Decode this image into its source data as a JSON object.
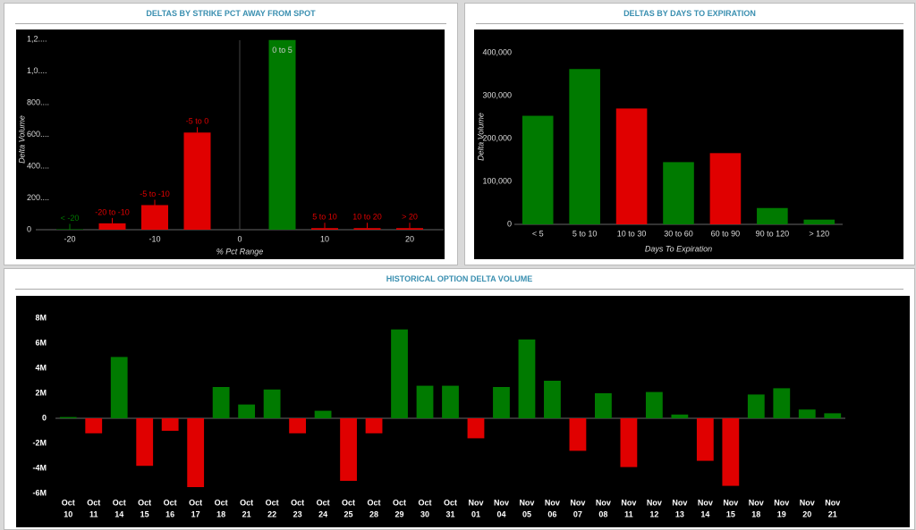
{
  "chart_data": [
    {
      "type": "bar",
      "title": "DELTAS BY STRIKE PCT AWAY FROM SPOT",
      "x_label": "% Pct Range",
      "y_label": "Delta Volume",
      "categories": [
        "< -20",
        "-20 to -10",
        "-5 to -10",
        "-5 to 0",
        "0 to 5",
        "5 to 10",
        "10 to 20",
        "> 20"
      ],
      "x": [
        -20,
        -15,
        -10,
        -5,
        5,
        10,
        15,
        20
      ],
      "values": [
        3,
        40,
        155,
        612,
        1195,
        10,
        10,
        10
      ],
      "colors": [
        "#007a00",
        "#e00000",
        "#e00000",
        "#e00000",
        "#007a00",
        "#e00000",
        "#e00000",
        "#e00000"
      ],
      "xlim": [
        -24,
        24
      ],
      "xticks": [
        -20,
        -10,
        0,
        10,
        20
      ],
      "ylim": [
        0,
        1250
      ],
      "yticks": [
        0,
        {
          "value": 200,
          "label": "200...."
        },
        {
          "value": 400,
          "label": "400...."
        },
        {
          "value": 600,
          "label": "600...."
        },
        {
          "value": 800,
          "label": "800...."
        },
        {
          "value": 1000,
          "label": "1,0...."
        },
        {
          "value": 1200,
          "label": "1,2...."
        }
      ]
    },
    {
      "type": "bar",
      "title": "DELTAS BY DAYS TO EXPIRATION",
      "x_label": "Days To Expiration",
      "y_label": "Delta Volume",
      "categories": [
        "< 5",
        "5 to 10",
        "10 to 30",
        "30 to 60",
        "60 to 90",
        "90 to 120",
        "> 120"
      ],
      "values": [
        253000,
        362000,
        270000,
        145000,
        166000,
        38000,
        11000
      ],
      "colors": [
        "#007a00",
        "#007a00",
        "#e00000",
        "#007a00",
        "#e00000",
        "#007a00",
        "#007a00"
      ],
      "ylim": [
        0,
        450000
      ],
      "yticks": [
        0,
        {
          "value": 100000,
          "label": "100,000"
        },
        {
          "value": 200000,
          "label": "200,000"
        },
        {
          "value": 300000,
          "label": "300,000"
        },
        {
          "value": 400000,
          "label": "400,000"
        }
      ]
    },
    {
      "type": "bar",
      "title": "HISTORICAL OPTION DELTA VOLUME",
      "categories": [
        [
          "Oct",
          "10"
        ],
        [
          "Oct",
          "11"
        ],
        [
          "Oct",
          "14"
        ],
        [
          "Oct",
          "15"
        ],
        [
          "Oct",
          "16"
        ],
        [
          "Oct",
          "17"
        ],
        [
          "Oct",
          "18"
        ],
        [
          "Oct",
          "21"
        ],
        [
          "Oct",
          "22"
        ],
        [
          "Oct",
          "23"
        ],
        [
          "Oct",
          "24"
        ],
        [
          "Oct",
          "25"
        ],
        [
          "Oct",
          "28"
        ],
        [
          "Oct",
          "29"
        ],
        [
          "Oct",
          "30"
        ],
        [
          "Oct",
          "31"
        ],
        [
          "Nov",
          "01"
        ],
        [
          "Nov",
          "04"
        ],
        [
          "Nov",
          "05"
        ],
        [
          "Nov",
          "06"
        ],
        [
          "Nov",
          "07"
        ],
        [
          "Nov",
          "08"
        ],
        [
          "Nov",
          "11"
        ],
        [
          "Nov",
          "12"
        ],
        [
          "Nov",
          "13"
        ],
        [
          "Nov",
          "14"
        ],
        [
          "Nov",
          "15"
        ],
        [
          "Nov",
          "18"
        ],
        [
          "Nov",
          "19"
        ],
        [
          "Nov",
          "20"
        ],
        [
          "Nov",
          "21"
        ]
      ],
      "values": [
        100000,
        -1200000,
        4900000,
        -3800000,
        -1000000,
        -5500000,
        2500000,
        1100000,
        2300000,
        -1200000,
        600000,
        -5000000,
        -1200000,
        7100000,
        2600000,
        2600000,
        -1600000,
        2500000,
        6300000,
        3000000,
        -2600000,
        2000000,
        -3900000,
        2100000,
        300000,
        -3400000,
        -5400000,
        1900000,
        2400000,
        700000,
        400000
      ],
      "positive_color": "#007a00",
      "negative_color": "#e00000",
      "ylim": [
        -6500000,
        9000000
      ],
      "yticks": [
        {
          "value": -6000000,
          "label": "-6M"
        },
        {
          "value": -4000000,
          "label": "-4M"
        },
        {
          "value": -2000000,
          "label": "-2M"
        },
        0,
        {
          "value": 2000000,
          "label": "2M"
        },
        {
          "value": 4000000,
          "label": "4M"
        },
        {
          "value": 6000000,
          "label": "6M"
        },
        {
          "value": 8000000,
          "label": "8M"
        }
      ]
    }
  ]
}
